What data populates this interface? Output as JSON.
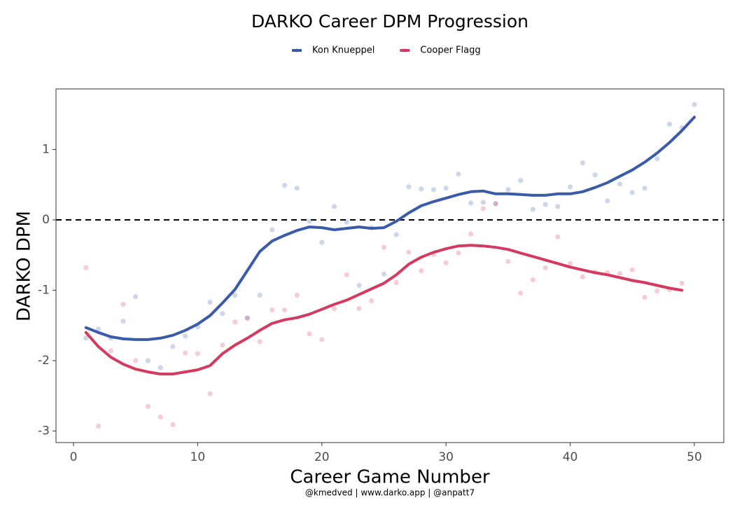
{
  "chart_data": {
    "type": "scatter",
    "title": "DARKO Career DPM Progression",
    "x_label": "Career Game Number",
    "y_label": "DARKO DPM",
    "caption": "@kmedved | www.darko.app | @anpatt7",
    "xlim": [
      -1.41,
      52.37
    ],
    "ylim": [
      -3.164,
      1.861
    ],
    "xticks": [
      0,
      10,
      20,
      30,
      40,
      50
    ],
    "yticks": [
      -3,
      -2,
      -1,
      0,
      1
    ],
    "reference_line": 0,
    "series": [
      {
        "name": "Kon Knueppel",
        "color": "#3a5ba9",
        "x": [
          1,
          2,
          3,
          4,
          5,
          6,
          7,
          8,
          9,
          10,
          11,
          12,
          13,
          14,
          15,
          16,
          17,
          18,
          19,
          20,
          21,
          22,
          23,
          24,
          25,
          26,
          27,
          28,
          29,
          30,
          31,
          32,
          33,
          34,
          35,
          36,
          37,
          38,
          39,
          40,
          41,
          42,
          43,
          44,
          45,
          46,
          47,
          48,
          49,
          50
        ],
        "values": [
          -1.68,
          -1.55,
          -1.68,
          -1.44,
          -1.09,
          -2.0,
          -2.1,
          -1.8,
          -1.65,
          -1.52,
          -1.17,
          -1.33,
          -1.07,
          -1.39,
          -1.07,
          -0.14,
          0.49,
          0.45,
          -0.02,
          -0.32,
          0.19,
          -0.03,
          -0.93,
          -0.11,
          -0.77,
          -0.21,
          0.47,
          0.44,
          0.43,
          0.45,
          0.65,
          0.24,
          0.25,
          0.23,
          0.43,
          0.56,
          0.15,
          0.22,
          0.19,
          0.47,
          0.81,
          0.64,
          0.27,
          0.51,
          0.39,
          0.45,
          0.87,
          1.36,
          1.31,
          1.64
        ],
        "smooth": [
          -1.53,
          -1.6,
          -1.66,
          -1.69,
          -1.7,
          -1.7,
          -1.68,
          -1.64,
          -1.57,
          -1.48,
          -1.36,
          -1.18,
          -0.99,
          -0.72,
          -0.45,
          -0.3,
          -0.22,
          -0.15,
          -0.1,
          -0.11,
          -0.14,
          -0.12,
          -0.1,
          -0.12,
          -0.11,
          -0.02,
          0.1,
          0.2,
          0.26,
          0.31,
          0.36,
          0.4,
          0.41,
          0.37,
          0.37,
          0.36,
          0.35,
          0.35,
          0.37,
          0.37,
          0.4,
          0.46,
          0.53,
          0.62,
          0.71,
          0.82,
          0.95,
          1.1,
          1.27,
          1.46
        ]
      },
      {
        "name": "Cooper Flagg",
        "color": "#d6395f",
        "x": [
          1,
          2,
          3,
          4,
          5,
          6,
          7,
          8,
          9,
          10,
          11,
          12,
          13,
          14,
          15,
          16,
          17,
          18,
          19,
          20,
          21,
          22,
          23,
          24,
          25,
          26,
          27,
          28,
          29,
          30,
          31,
          32,
          33,
          34,
          35,
          36,
          37,
          38,
          39,
          40,
          41,
          42,
          43,
          44,
          45,
          46,
          47,
          48,
          49
        ],
        "values": [
          -0.68,
          -2.93,
          -1.86,
          -1.2,
          -2.0,
          -2.65,
          -2.8,
          -2.91,
          -1.89,
          -1.9,
          -2.47,
          -1.78,
          -1.45,
          -1.4,
          -1.73,
          -1.28,
          -1.28,
          -1.07,
          -1.62,
          -1.7,
          -1.26,
          -0.78,
          -1.26,
          -1.15,
          -0.39,
          -0.89,
          -0.46,
          -0.72,
          -0.49,
          -0.61,
          -0.47,
          -0.2,
          0.16,
          0.23,
          -0.59,
          -1.04,
          -0.85,
          -0.68,
          -0.24,
          -0.62,
          -0.81,
          -0.74,
          -0.75,
          -0.76,
          -0.71,
          -1.1,
          -1.01,
          -0.99,
          -0.9
        ],
        "smooth": [
          -1.6,
          -1.8,
          -1.95,
          -2.05,
          -2.12,
          -2.16,
          -2.19,
          -2.19,
          -2.16,
          -2.13,
          -2.07,
          -1.9,
          -1.78,
          -1.68,
          -1.57,
          -1.47,
          -1.42,
          -1.39,
          -1.34,
          -1.27,
          -1.2,
          -1.14,
          -1.06,
          -0.98,
          -0.9,
          -0.78,
          -0.63,
          -0.53,
          -0.46,
          -0.41,
          -0.37,
          -0.36,
          -0.37,
          -0.39,
          -0.42,
          -0.47,
          -0.52,
          -0.57,
          -0.62,
          -0.67,
          -0.71,
          -0.75,
          -0.78,
          -0.82,
          -0.86,
          -0.89,
          -0.93,
          -0.97,
          -1.0
        ]
      }
    ]
  }
}
